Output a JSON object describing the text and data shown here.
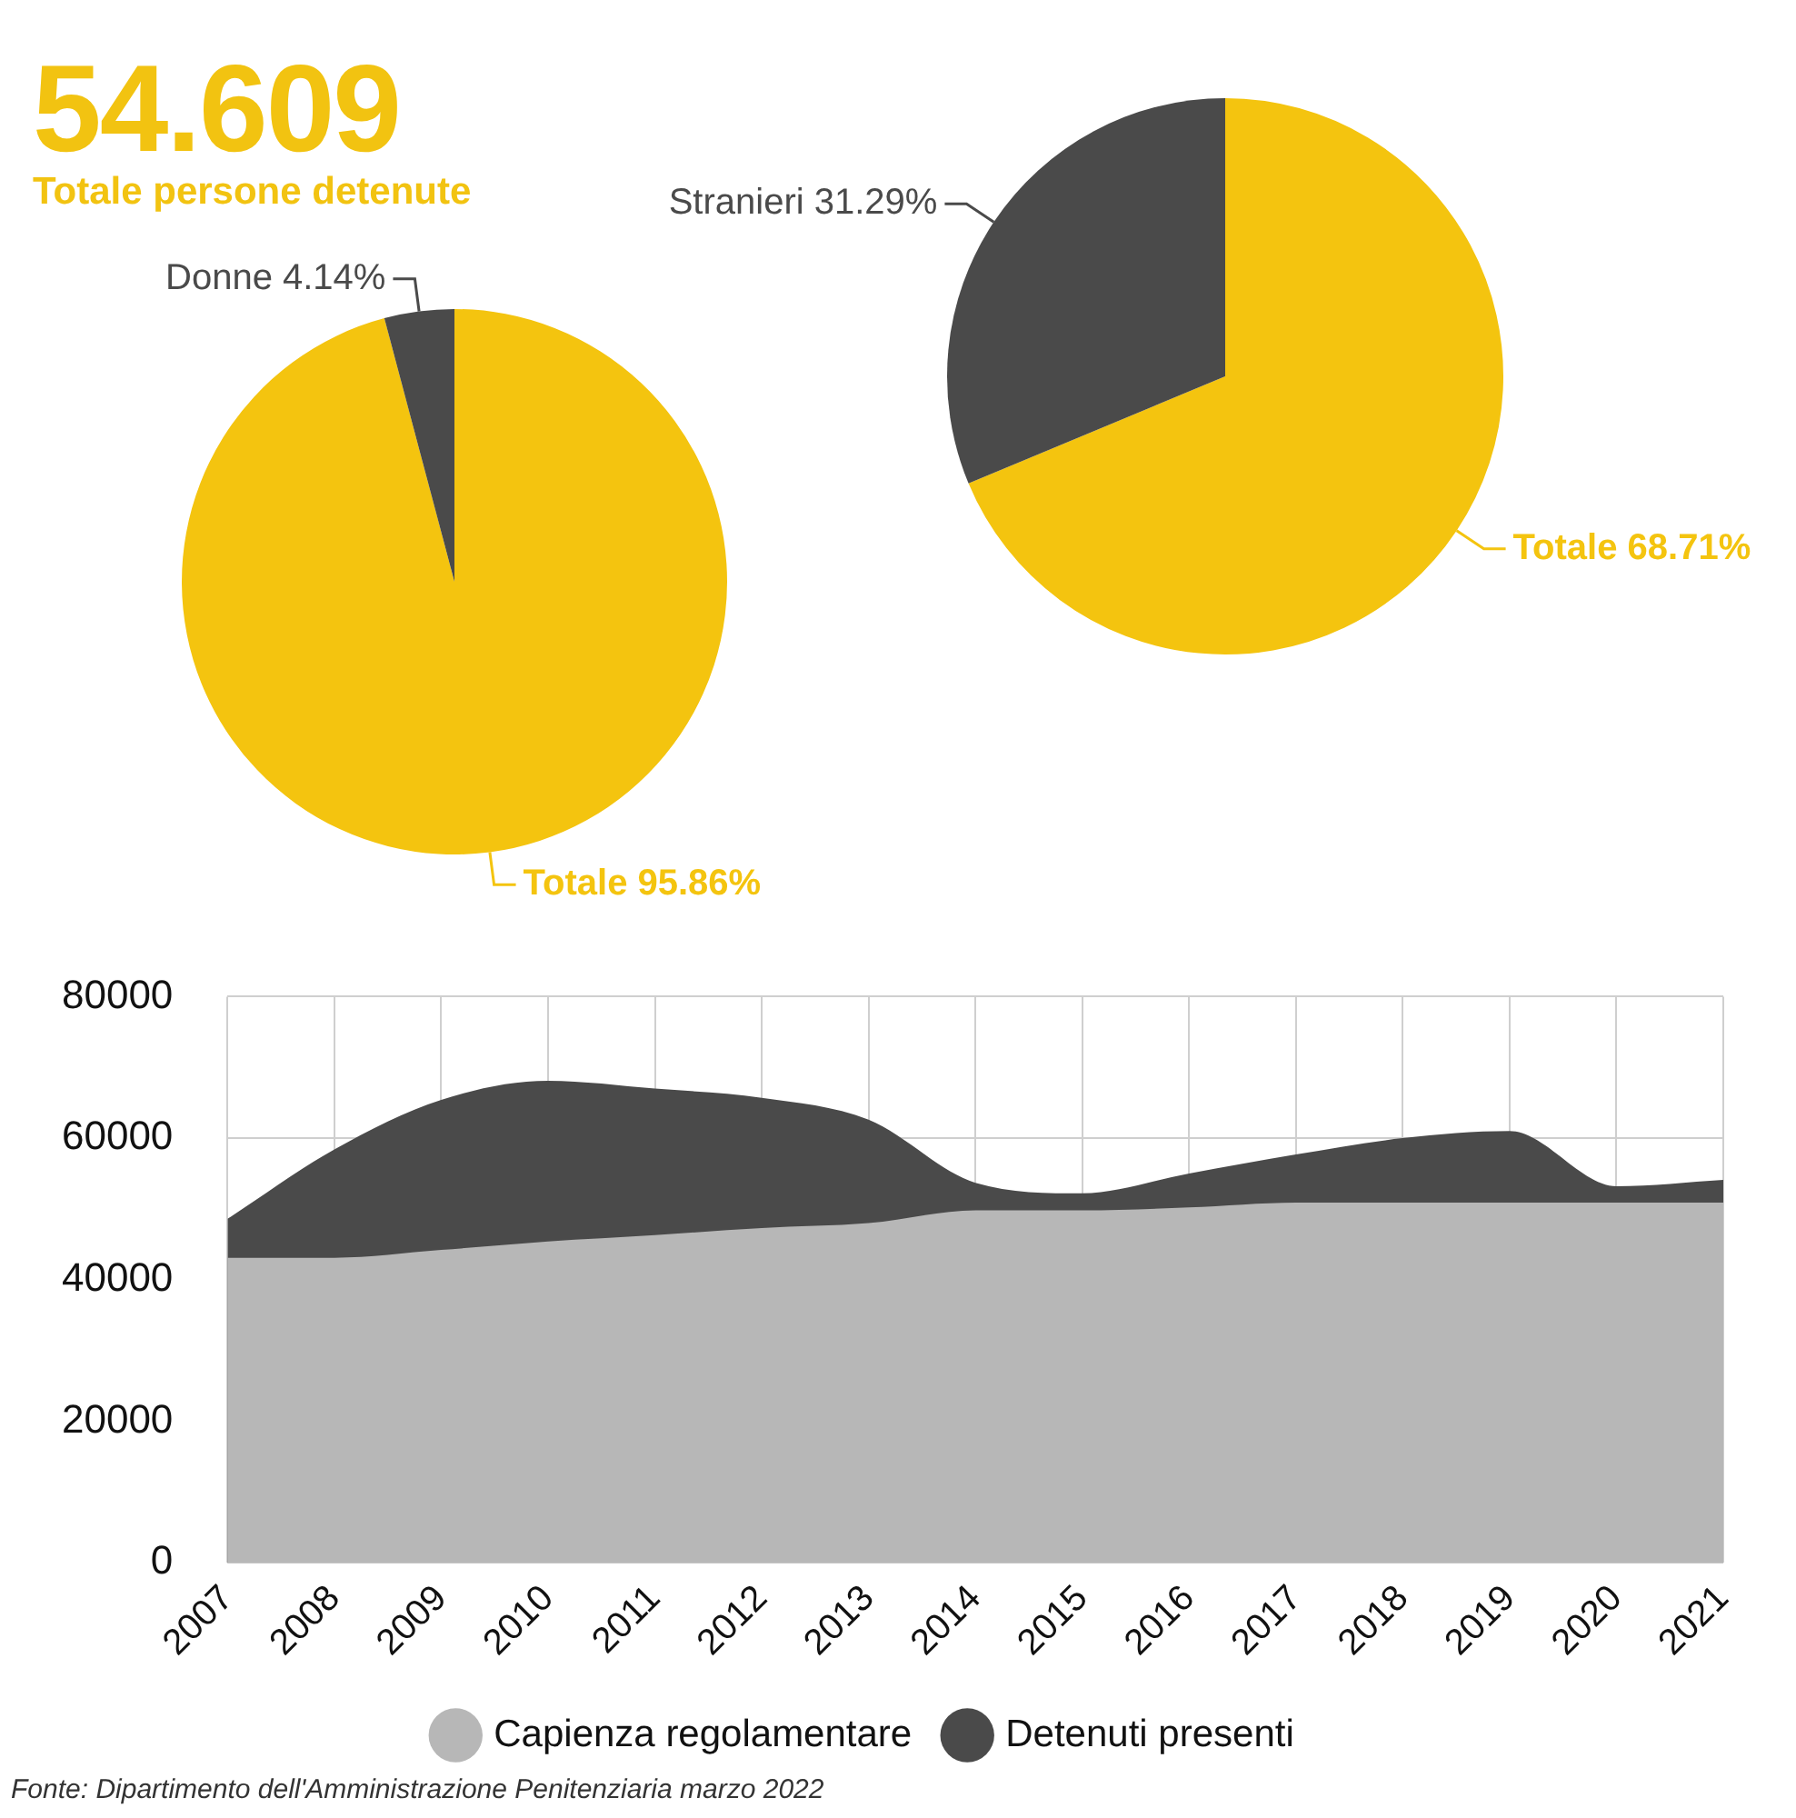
{
  "chart_data": [
    {
      "type": "other",
      "title": "54.609",
      "subtitle": "Totale persone detenute",
      "color": "#f2c311"
    },
    {
      "type": "pie",
      "categories": [
        "Totale",
        "Donne"
      ],
      "values": [
        95.86,
        4.14
      ],
      "value_labels": [
        "95.86%",
        "4.14%"
      ],
      "colors": [
        "#f4c40f",
        "#4a4a4a"
      ],
      "legend": false
    },
    {
      "type": "pie",
      "categories": [
        "Totale",
        "Stranieri"
      ],
      "values": [
        68.71,
        31.29
      ],
      "value_labels": [
        "68.71%",
        "31.29%"
      ],
      "colors": [
        "#f4c40f",
        "#4a4a4a"
      ],
      "legend": false
    },
    {
      "type": "area",
      "categories": [
        "2007",
        "2008",
        "2009",
        "2010",
        "2011",
        "2012",
        "2013",
        "2014",
        "2015",
        "2016",
        "2017",
        "2018",
        "2019",
        "2020",
        "2021"
      ],
      "series": [
        {
          "name": "Capienza regolamentare",
          "color": "#b7b7b7",
          "values": [
            43100,
            43100,
            44200,
            45400,
            46300,
            47300,
            48000,
            49800,
            49800,
            50200,
            50900,
            50900,
            50900,
            50900,
            50900
          ]
        },
        {
          "name": "Detenuti presenti",
          "color": "#4a4a4a",
          "values": [
            48600,
            58400,
            65400,
            68100,
            67000,
            65700,
            62600,
            53700,
            52200,
            55000,
            57700,
            60000,
            61000,
            53200,
            54100
          ]
        }
      ],
      "ylim": [
        0,
        80000
      ],
      "yticks": [
        0,
        20000,
        40000,
        60000,
        80000
      ],
      "grid": true,
      "legend": "bottom",
      "marker": "none",
      "annotations": [
        "Fonte: Dipartimento dell'Amministrazione Penitenziaria marzo 2022"
      ]
    }
  ]
}
